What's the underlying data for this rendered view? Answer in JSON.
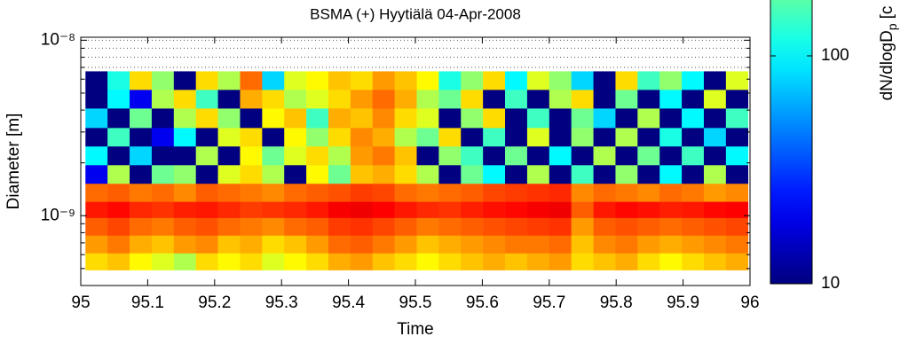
{
  "chart_data": {
    "type": "heatmap",
    "title": "BSMA (+) Hyytiälä 04-Apr-2008",
    "xlabel": "Time",
    "ylabel": "Diameter [m]",
    "colorbar_label": "dN/dlogD",
    "colorbar_label_sub": "p",
    "colorbar_label_tail": "[c",
    "xlim": [
      95,
      96
    ],
    "xticks": [
      95,
      95.1,
      95.2,
      95.3,
      95.4,
      95.5,
      95.6,
      95.7,
      95.8,
      95.9,
      96
    ],
    "ylim": [
      4e-10,
      1.04e-08
    ],
    "y_log": true,
    "yticks": [
      {
        "value": 1e-09,
        "label": "10⁻⁹"
      },
      {
        "value": 1e-08,
        "label": "10⁻⁸"
      }
    ],
    "yminorticks": [
      5e-10,
      6e-10,
      7e-10,
      8e-10,
      9e-10,
      2e-09,
      3e-09,
      4e-09,
      5e-09,
      6e-09,
      7e-09,
      8e-09,
      9e-09
    ],
    "grid": true,
    "colormap": "jet",
    "clim": [
      10,
      5000
    ],
    "c_log": true,
    "cticks": [
      10,
      100
    ],
    "x_bins": [
      95.007,
      95.04,
      95.073,
      95.106,
      95.139,
      95.172,
      95.205,
      95.238,
      95.271,
      95.304,
      95.337,
      95.37,
      95.403,
      95.436,
      95.469,
      95.502,
      95.535,
      95.568,
      95.601,
      95.634,
      95.667,
      95.7,
      95.733,
      95.766,
      95.799,
      95.832,
      95.865,
      95.898,
      95.931,
      95.964,
      95.997
    ],
    "y_bins": [
      6.65e-09,
      5.21e-09,
      4.08e-09,
      3.16e-09,
      2.48e-09,
      1.94e-09,
      1.52e-09,
      1.2e-09,
      9.7e-10,
      7.7e-10,
      6.1e-10,
      4.9e-10
    ],
    "z": [
      [
        10,
        120,
        600,
        250,
        10,
        600,
        300,
        1200,
        80,
        400,
        500,
        700,
        600,
        900,
        700,
        500,
        120,
        250,
        600,
        100,
        400,
        250,
        80,
        10,
        600,
        150,
        250,
        100,
        10,
        400
      ],
      [
        10,
        100,
        20,
        300,
        600,
        150,
        10,
        800,
        600,
        300,
        400,
        600,
        900,
        1200,
        800,
        300,
        200,
        600,
        10,
        150,
        10,
        300,
        600,
        10,
        200,
        10,
        100,
        10,
        400,
        10
      ],
      [
        80,
        10,
        200,
        10,
        300,
        600,
        250,
        10,
        500,
        700,
        150,
        800,
        700,
        1000,
        600,
        400,
        10,
        250,
        600,
        10,
        150,
        10,
        200,
        80,
        10,
        300,
        10,
        100,
        10,
        150
      ],
      [
        10,
        150,
        10,
        20,
        100,
        10,
        400,
        600,
        10,
        500,
        250,
        600,
        1000,
        800,
        300,
        200,
        600,
        10,
        150,
        10,
        400,
        10,
        250,
        10,
        300,
        10,
        120,
        10,
        80,
        10
      ],
      [
        100,
        10,
        80,
        10,
        10,
        300,
        10,
        500,
        200,
        400,
        600,
        300,
        900,
        1100,
        700,
        10,
        250,
        150,
        10,
        200,
        10,
        100,
        10,
        300,
        10,
        200,
        10,
        150,
        10,
        100
      ],
      [
        20,
        300,
        10,
        200,
        250,
        10,
        400,
        600,
        300,
        10,
        500,
        200,
        700,
        800,
        600,
        300,
        10,
        200,
        100,
        10,
        300,
        10,
        150,
        10,
        250,
        10,
        100,
        10,
        300,
        10
      ],
      [
        1200,
        1300,
        1100,
        1200,
        1000,
        1300,
        1200,
        1100,
        1000,
        1200,
        1300,
        1400,
        1600,
        1500,
        1200,
        1100,
        1200,
        1300,
        1500,
        1600,
        1700,
        1800,
        1000,
        1200,
        1100,
        1000,
        1200,
        1100,
        900,
        1000
      ],
      [
        2000,
        2200,
        1800,
        1700,
        1900,
        2000,
        1800,
        1600,
        1700,
        1800,
        2000,
        2400,
        2500,
        2300,
        2000,
        1800,
        1700,
        1900,
        2100,
        2200,
        2400,
        2500,
        1300,
        2000,
        2200,
        2100,
        1900,
        2000,
        2200,
        2300
      ],
      [
        1300,
        1500,
        1200,
        1100,
        1300,
        1400,
        1200,
        1100,
        1000,
        1200,
        1300,
        1600,
        1700,
        1500,
        1300,
        1100,
        1200,
        1300,
        1400,
        1500,
        1600,
        1700,
        900,
        1300,
        1400,
        1300,
        1200,
        1300,
        1400,
        1500
      ],
      [
        900,
        1100,
        800,
        700,
        900,
        1000,
        700,
        800,
        600,
        700,
        900,
        1200,
        1300,
        1100,
        900,
        700,
        800,
        900,
        1000,
        1100,
        1100,
        1200,
        700,
        1000,
        1100,
        900,
        800,
        900,
        1000,
        1100
      ],
      [
        600,
        700,
        500,
        400,
        300,
        600,
        500,
        600,
        400,
        500,
        600,
        800,
        900,
        700,
        600,
        500,
        600,
        700,
        800,
        700,
        800,
        900,
        600,
        700,
        800,
        600,
        500,
        600,
        700,
        800
      ]
    ]
  }
}
